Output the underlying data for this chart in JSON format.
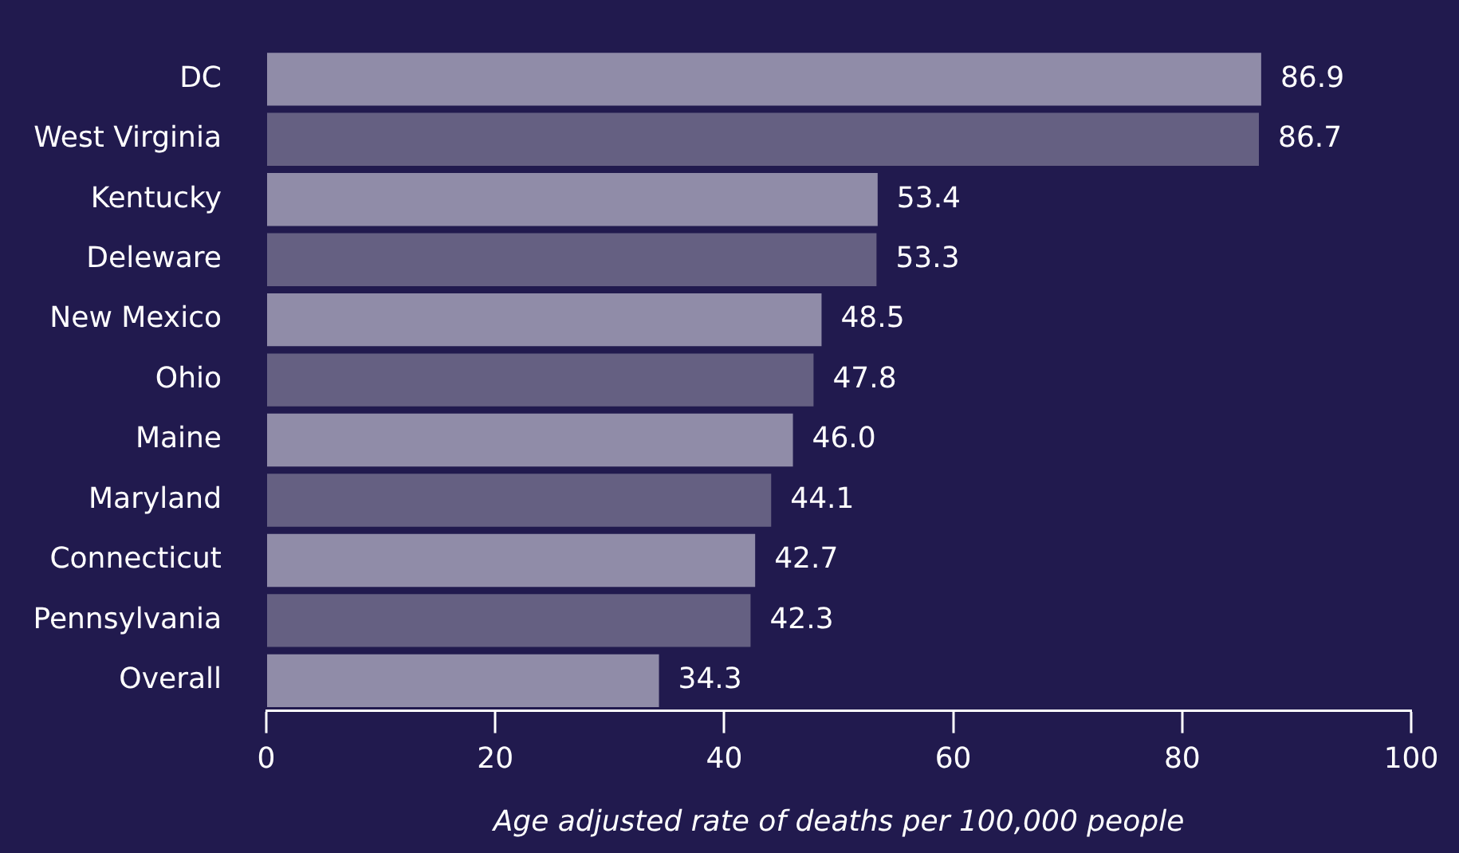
{
  "chart_data": {
    "type": "bar",
    "orientation": "horizontal",
    "xlabel": "Age adjusted rate of deaths per 100,000 people",
    "categories": [
      "DC",
      "West Virginia",
      "Kentucky",
      "Deleware",
      "New Mexico",
      "Ohio",
      "Maine",
      "Maryland",
      "Connecticut",
      "Pennsylvania",
      "Overall"
    ],
    "values": [
      86.9,
      86.7,
      53.4,
      53.3,
      48.5,
      47.8,
      46.0,
      44.1,
      42.7,
      42.3,
      34.3
    ],
    "value_labels": [
      "86.9",
      "86.7",
      "53.4",
      "53.3",
      "48.5",
      "47.8",
      "46.0",
      "44.1",
      "42.7",
      "42.3",
      "34.3"
    ],
    "colors": [
      "#908ca8",
      "#656082",
      "#908ca8",
      "#656082",
      "#908ca8",
      "#656082",
      "#908ca8",
      "#656082",
      "#908ca8",
      "#656082",
      "#908ca8"
    ],
    "xlim": [
      0,
      100
    ],
    "xticks": [
      0,
      20,
      40,
      60,
      80,
      100
    ],
    "grid": false,
    "legend": false
  }
}
